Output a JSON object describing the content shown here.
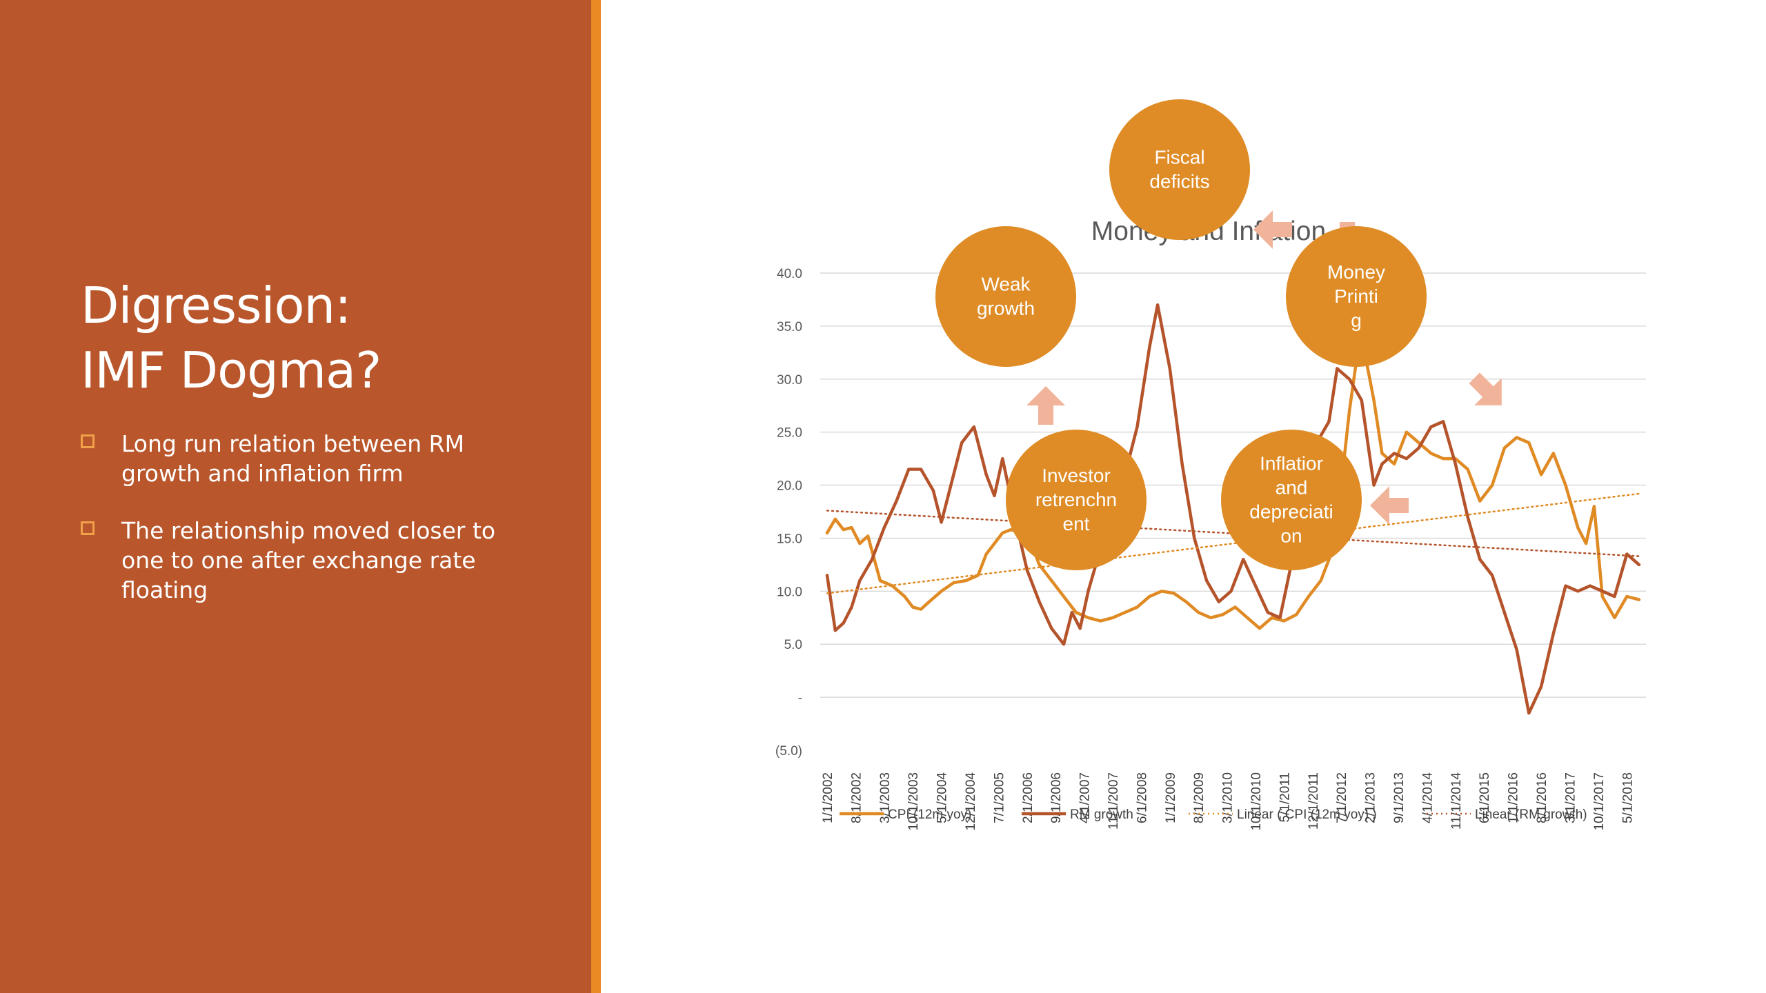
{
  "slide": {
    "title_lines": [
      "Digression:",
      "IMF Dogma?"
    ],
    "bullets": [
      "Long run relation between RM growth and  inflation firm",
      "The relationship moved closer to one to one after exchange rate floating"
    ]
  },
  "colors": {
    "left_panel": "#b9562b",
    "accent_bar": "#e98a22",
    "cpi": "#e08a24",
    "rm": "#b5532b",
    "bubble": "#df8c26",
    "arrow": "#f1b49a"
  },
  "cycle_diagram": {
    "nodes": [
      {
        "id": "fiscal",
        "label_lines": [
          "Fiscal",
          "deficits"
        ]
      },
      {
        "id": "money",
        "label_lines": [
          "Money",
          "Printi",
          "g"
        ]
      },
      {
        "id": "inflation",
        "label_lines": [
          "Inflatior",
          "and",
          "depreciati",
          "on"
        ]
      },
      {
        "id": "investor",
        "label_lines": [
          "Investor",
          "retrenchn",
          "ent"
        ]
      },
      {
        "id": "weak",
        "label_lines": [
          "Weak",
          "growth"
        ]
      }
    ]
  },
  "chart_data": {
    "type": "line",
    "title": "Money and Inflation",
    "xlabel": "",
    "ylabel": "",
    "ylim": [
      -5,
      40
    ],
    "yticks": [
      "40.0",
      "35.0",
      "30.0",
      "25.0",
      "20.0",
      "15.0",
      "10.0",
      "5.0",
      "-",
      "(5.0)"
    ],
    "ytick_values": [
      40,
      35,
      30,
      25,
      20,
      15,
      10,
      5,
      0,
      -5
    ],
    "x_tick_labels": [
      "1/1/2002",
      "8/1/2002",
      "3/1/2003",
      "10/1/2003",
      "5/1/2004",
      "12/1/2004",
      "7/1/2005",
      "2/1/2006",
      "9/1/2006",
      "4/1/2007",
      "11/1/2007",
      "6/1/2008",
      "1/1/2009",
      "8/1/2009",
      "3/1/2010",
      "10/1/2010",
      "5/1/2011",
      "12/1/2011",
      "7/1/2012",
      "2/1/2013",
      "9/1/2013",
      "4/1/2014",
      "11/1/2014",
      "6/1/2015",
      "1/1/2016",
      "8/1/2016",
      "3/1/2017",
      "10/1/2017",
      "5/1/2018"
    ],
    "x_range": [
      "2002-01",
      "2018-08"
    ],
    "grid": true,
    "legend_position": "bottom",
    "series": [
      {
        "name": "CPI (12m yoy)",
        "style": "solid",
        "points": [
          [
            "2002-01",
            15.5
          ],
          [
            "2002-03",
            16.8
          ],
          [
            "2002-05",
            15.8
          ],
          [
            "2002-07",
            16.0
          ],
          [
            "2002-09",
            14.5
          ],
          [
            "2002-11",
            15.2
          ],
          [
            "2003-02",
            11.0
          ],
          [
            "2003-05",
            10.5
          ],
          [
            "2003-08",
            9.5
          ],
          [
            "2003-10",
            8.5
          ],
          [
            "2003-12",
            8.3
          ],
          [
            "2004-02",
            9.0
          ],
          [
            "2004-05",
            10.0
          ],
          [
            "2004-08",
            10.8
          ],
          [
            "2004-11",
            11.0
          ],
          [
            "2005-02",
            11.5
          ],
          [
            "2005-04",
            13.5
          ],
          [
            "2005-06",
            14.5
          ],
          [
            "2005-08",
            15.5
          ],
          [
            "2005-10",
            15.8
          ],
          [
            "2006-01",
            15.5
          ],
          [
            "2006-03",
            14.5
          ],
          [
            "2006-05",
            12.5
          ],
          [
            "2006-08",
            11.0
          ],
          [
            "2006-11",
            9.5
          ],
          [
            "2007-02",
            8.0
          ],
          [
            "2007-05",
            7.5
          ],
          [
            "2007-08",
            7.2
          ],
          [
            "2007-11",
            7.5
          ],
          [
            "2008-02",
            8.0
          ],
          [
            "2008-05",
            8.5
          ],
          [
            "2008-08",
            9.5
          ],
          [
            "2008-11",
            10.0
          ],
          [
            "2009-02",
            9.8
          ],
          [
            "2009-05",
            9.0
          ],
          [
            "2009-08",
            8.0
          ],
          [
            "2009-11",
            7.5
          ],
          [
            "2010-02",
            7.8
          ],
          [
            "2010-05",
            8.5
          ],
          [
            "2010-08",
            7.5
          ],
          [
            "2010-11",
            6.5
          ],
          [
            "2011-02",
            7.5
          ],
          [
            "2011-05",
            7.2
          ],
          [
            "2011-08",
            7.8
          ],
          [
            "2011-11",
            9.5
          ],
          [
            "2012-02",
            11.0
          ],
          [
            "2012-05",
            14.0
          ],
          [
            "2012-07",
            20.0
          ],
          [
            "2012-09",
            27.0
          ],
          [
            "2012-11",
            32.5
          ],
          [
            "2013-01",
            32.0
          ],
          [
            "2013-03",
            28.0
          ],
          [
            "2013-05",
            23.0
          ],
          [
            "2013-08",
            22.0
          ],
          [
            "2013-11",
            25.0
          ],
          [
            "2014-02",
            24.0
          ],
          [
            "2014-05",
            23.0
          ],
          [
            "2014-08",
            22.5
          ],
          [
            "2014-11",
            22.5
          ],
          [
            "2015-02",
            21.5
          ],
          [
            "2015-05",
            18.5
          ],
          [
            "2015-08",
            20.0
          ],
          [
            "2015-11",
            23.5
          ],
          [
            "2016-02",
            24.5
          ],
          [
            "2016-05",
            24.0
          ],
          [
            "2016-08",
            21.0
          ],
          [
            "2016-11",
            23.0
          ],
          [
            "2017-02",
            20.0
          ],
          [
            "2017-05",
            16.0
          ],
          [
            "2017-07",
            14.5
          ],
          [
            "2017-09",
            18.0
          ],
          [
            "2017-11",
            9.5
          ],
          [
            "2018-02",
            7.5
          ],
          [
            "2018-05",
            9.5
          ],
          [
            "2018-08",
            9.2
          ]
        ]
      },
      {
        "name": "RM growth",
        "style": "solid",
        "points": [
          [
            "2002-01",
            11.5
          ],
          [
            "2002-03",
            6.3
          ],
          [
            "2002-05",
            7.0
          ],
          [
            "2002-07",
            8.5
          ],
          [
            "2002-09",
            11.0
          ],
          [
            "2002-12",
            13.0
          ],
          [
            "2003-03",
            16.0
          ],
          [
            "2003-06",
            18.5
          ],
          [
            "2003-09",
            21.5
          ],
          [
            "2003-12",
            21.5
          ],
          [
            "2004-03",
            19.5
          ],
          [
            "2004-05",
            16.5
          ],
          [
            "2004-08",
            21.0
          ],
          [
            "2004-10",
            24.0
          ],
          [
            "2005-01",
            25.5
          ],
          [
            "2005-04",
            21.0
          ],
          [
            "2005-06",
            19.0
          ],
          [
            "2005-08",
            22.5
          ],
          [
            "2005-11",
            17.0
          ],
          [
            "2006-02",
            12.0
          ],
          [
            "2006-05",
            9.0
          ],
          [
            "2006-08",
            6.5
          ],
          [
            "2006-11",
            5.0
          ],
          [
            "2007-01",
            8.0
          ],
          [
            "2007-03",
            6.5
          ],
          [
            "2007-05",
            10.0
          ],
          [
            "2007-08",
            14.0
          ],
          [
            "2007-11",
            19.0
          ],
          [
            "2008-02",
            21.0
          ],
          [
            "2008-05",
            25.5
          ],
          [
            "2008-08",
            33.0
          ],
          [
            "2008-10",
            37.0
          ],
          [
            "2009-01",
            31.0
          ],
          [
            "2009-04",
            22.0
          ],
          [
            "2009-07",
            15.0
          ],
          [
            "2009-10",
            11.0
          ],
          [
            "2010-01",
            9.0
          ],
          [
            "2010-04",
            10.0
          ],
          [
            "2010-07",
            13.0
          ],
          [
            "2010-10",
            10.5
          ],
          [
            "2011-01",
            8.0
          ],
          [
            "2011-04",
            7.5
          ],
          [
            "2011-07",
            13.0
          ],
          [
            "2011-10",
            21.0
          ],
          [
            "2012-01",
            24.0
          ],
          [
            "2012-04",
            26.0
          ],
          [
            "2012-06",
            31.0
          ],
          [
            "2012-09",
            30.0
          ],
          [
            "2012-12",
            28.0
          ],
          [
            "2013-03",
            20.0
          ],
          [
            "2013-05",
            22.0
          ],
          [
            "2013-08",
            23.0
          ],
          [
            "2013-11",
            22.5
          ],
          [
            "2014-02",
            23.5
          ],
          [
            "2014-05",
            25.5
          ],
          [
            "2014-08",
            26.0
          ],
          [
            "2014-11",
            22.0
          ],
          [
            "2015-02",
            17.0
          ],
          [
            "2015-05",
            13.0
          ],
          [
            "2015-08",
            11.5
          ],
          [
            "2015-11",
            8.0
          ],
          [
            "2016-02",
            4.5
          ],
          [
            "2016-05",
            -1.5
          ],
          [
            "2016-08",
            1.0
          ],
          [
            "2016-11",
            6.0
          ],
          [
            "2017-02",
            10.5
          ],
          [
            "2017-05",
            10.0
          ],
          [
            "2017-08",
            10.5
          ],
          [
            "2017-11",
            10.0
          ],
          [
            "2018-02",
            9.5
          ],
          [
            "2018-05",
            13.5
          ],
          [
            "2018-08",
            12.5
          ]
        ]
      },
      {
        "name": "Linear ( CPI (12m yoy) )",
        "style": "dotted",
        "points": [
          [
            "2002-01",
            9.8
          ],
          [
            "2018-08",
            19.2
          ]
        ]
      },
      {
        "name": "Linear (RM growth)",
        "style": "dotted",
        "points": [
          [
            "2002-01",
            17.6
          ],
          [
            "2018-08",
            13.3
          ]
        ]
      }
    ]
  }
}
